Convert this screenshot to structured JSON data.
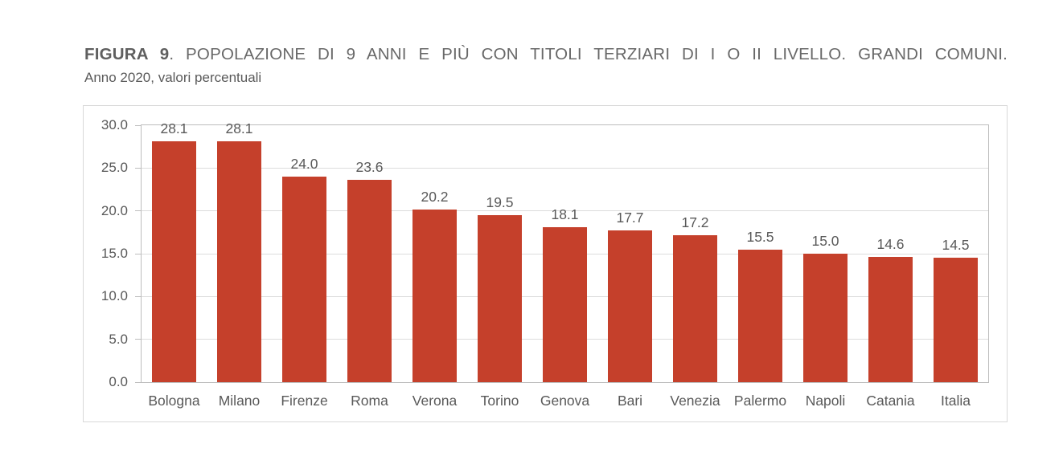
{
  "figure": {
    "title_prefix": "FIGURA 9",
    "title_rest": ". POPOLAZIONE DI 9 ANNI E PIÙ CON TITOLI TERZIARI DI I O II LIVELLO. GRANDI COMUNI.",
    "subtitle": "Anno 2020, valori percentuali"
  },
  "colors": {
    "bar": "#c5402b",
    "axis": "#bdbdbd",
    "gridline": "#dcdcdc",
    "frame_border": "#d9d9d9",
    "label_text": "#595959",
    "title_text": "#686868"
  },
  "chart_data": {
    "type": "bar",
    "title": "FIGURA 9. POPOLAZIONE DI 9 ANNI E PIÙ CON TITOLI TERZIARI DI I O II LIVELLO. GRANDI COMUNI.",
    "subtitle": "Anno 2020, valori percentuali",
    "categories": [
      "Bologna",
      "Milano",
      "Firenze",
      "Roma",
      "Verona",
      "Torino",
      "Genova",
      "Bari",
      "Venezia",
      "Palermo",
      "Napoli",
      "Catania",
      "Italia"
    ],
    "values": [
      28.1,
      28.1,
      24.0,
      23.6,
      20.2,
      19.5,
      18.1,
      17.7,
      17.2,
      15.5,
      15.0,
      14.6,
      14.5
    ],
    "value_labels": [
      "28.1",
      "28.1",
      "24.0",
      "23.6",
      "20.2",
      "19.5",
      "18.1",
      "17.7",
      "17.2",
      "15.5",
      "15.0",
      "14.6",
      "14.5"
    ],
    "xlabel": "",
    "ylabel": "",
    "ylim": [
      0,
      30
    ],
    "ytick_step": 5,
    "ytick_labels": [
      "0.0",
      "5.0",
      "10.0",
      "15.0",
      "20.0",
      "25.0",
      "30.0"
    ],
    "grid": true,
    "legend": false
  }
}
